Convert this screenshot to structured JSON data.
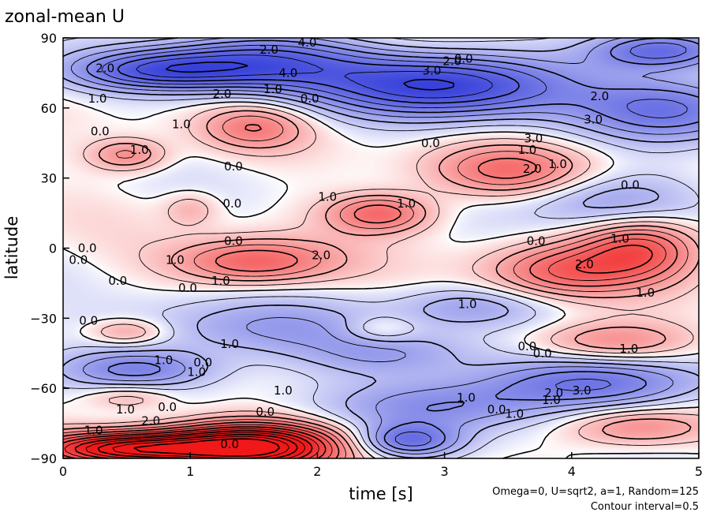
{
  "chart_data": {
    "type": "heatmap",
    "title": "zonal-mean U",
    "xlabel": "time [s]",
    "ylabel": "latitude",
    "xlim": [
      0,
      5
    ],
    "ylim": [
      -90,
      90
    ],
    "x_ticks": [
      "0",
      "1",
      "2",
      "3",
      "4",
      "5"
    ],
    "y_ticks": [
      "-90",
      "-60",
      "-30",
      "0",
      "30",
      "60",
      "90"
    ],
    "x_tick_values": [
      0,
      1,
      2,
      3,
      4,
      5
    ],
    "y_tick_values": [
      -90,
      -60,
      -30,
      0,
      30,
      60,
      90
    ],
    "contour_interval": 0.5,
    "colormap": {
      "negative": "#2a34d8",
      "zero": "#ffffff",
      "positive": "#f01818"
    },
    "footnote_lines": [
      "Omega=0, U=sqrt2, a=1, Random=125",
      "Contour interval=0.5"
    ],
    "features": [
      {
        "t": 0.5,
        "lat": 40,
        "amp": 1.8,
        "st": 0.22,
        "sl": 5
      },
      {
        "t": 1.5,
        "lat": 52,
        "amp": 1.8,
        "st": 0.3,
        "sl": 7
      },
      {
        "t": 1.0,
        "lat": 17,
        "amp": 1.0,
        "st": 0.15,
        "sl": 5
      },
      {
        "t": 3.5,
        "lat": 33,
        "amp": 2.2,
        "st": 0.45,
        "sl": 8
      },
      {
        "t": 2.5,
        "lat": 15,
        "amp": 2.5,
        "st": 0.3,
        "sl": 6
      },
      {
        "t": 1.5,
        "lat": -6,
        "amp": 2.6,
        "st": 0.45,
        "sl": 7
      },
      {
        "t": 4.55,
        "lat": 0,
        "amp": 3.0,
        "st": 0.35,
        "sl": 10
      },
      {
        "t": 3.9,
        "lat": -10,
        "amp": 2.2,
        "st": 0.4,
        "sl": 8
      },
      {
        "t": 4.3,
        "lat": -40,
        "amp": 1.8,
        "st": 0.45,
        "sl": 6
      },
      {
        "t": 0.5,
        "lat": -36,
        "amp": 1.5,
        "st": 0.22,
        "sl": 4
      },
      {
        "t": 2.5,
        "lat": -35,
        "amp": 1.0,
        "st": 0.2,
        "sl": 4
      },
      {
        "t": 0.5,
        "lat": -64,
        "amp": 1.2,
        "st": 0.25,
        "sl": 4
      },
      {
        "t": 1.5,
        "lat": -85,
        "amp": 6.0,
        "st": 0.5,
        "sl": 7
      },
      {
        "t": 0.5,
        "lat": -86,
        "amp": 5.0,
        "st": 0.5,
        "sl": 5
      },
      {
        "t": 4.5,
        "lat": -77,
        "amp": 1.8,
        "st": 0.4,
        "sl": 6
      },
      {
        "t": 1.5,
        "lat": 80,
        "amp": -3.0,
        "st": 0.6,
        "sl": 9
      },
      {
        "t": 3.0,
        "lat": 70,
        "amp": -4.0,
        "st": 0.7,
        "sl": 10
      },
      {
        "t": 4.7,
        "lat": 85,
        "amp": -3.0,
        "st": 0.4,
        "sl": 6
      },
      {
        "t": 4.8,
        "lat": 60,
        "amp": -2.5,
        "st": 0.5,
        "sl": 10
      },
      {
        "t": 0.7,
        "lat": 76,
        "amp": -2.5,
        "st": 0.5,
        "sl": 6
      },
      {
        "t": 4.3,
        "lat": 20,
        "amp": -1.6,
        "st": 0.5,
        "sl": 9
      },
      {
        "t": 1.5,
        "lat": -35,
        "amp": -1.5,
        "st": 0.8,
        "sl": 9
      },
      {
        "t": 4.2,
        "lat": -58,
        "amp": -2.5,
        "st": 0.7,
        "sl": 8
      },
      {
        "t": 3.0,
        "lat": -68,
        "amp": -1.8,
        "st": 0.6,
        "sl": 8
      },
      {
        "t": 0.6,
        "lat": -52,
        "amp": -2.0,
        "st": 0.45,
        "sl": 6
      },
      {
        "t": 2.7,
        "lat": -83,
        "amp": -2.5,
        "st": 0.3,
        "sl": 5
      },
      {
        "t": 2.6,
        "lat": -46,
        "amp": -1.4,
        "st": 0.5,
        "sl": 7
      },
      {
        "t": 3.2,
        "lat": -25,
        "amp": -1.2,
        "st": 0.4,
        "sl": 6
      }
    ],
    "contour_labels": [
      {
        "text": "2.0",
        "t": 1.62,
        "lat": 85
      },
      {
        "text": "4.0",
        "t": 1.92,
        "lat": 88
      },
      {
        "text": "2.0",
        "t": 0.33,
        "lat": 77
      },
      {
        "text": "4.0",
        "t": 1.77,
        "lat": 75
      },
      {
        "text": "2.0",
        "t": 1.25,
        "lat": 66
      },
      {
        "text": "1.0",
        "t": 1.65,
        "lat": 68
      },
      {
        "text": "0.0",
        "t": 1.94,
        "lat": 64
      },
      {
        "text": "0.0",
        "t": 0.29,
        "lat": 50
      },
      {
        "text": "1.0",
        "t": 0.27,
        "lat": 64
      },
      {
        "text": "1.0",
        "t": 0.93,
        "lat": 53
      },
      {
        "text": "1.0",
        "t": 0.6,
        "lat": 42
      },
      {
        "text": "0.0",
        "t": 1.34,
        "lat": 35
      },
      {
        "text": "0.0",
        "t": 1.33,
        "lat": 19
      },
      {
        "text": "1.0",
        "t": 2.08,
        "lat": 22
      },
      {
        "text": "1.0",
        "t": 2.7,
        "lat": 19
      },
      {
        "text": "0.0",
        "t": 1.34,
        "lat": 3
      },
      {
        "text": "0.0",
        "t": 0.19,
        "lat": 0
      },
      {
        "text": "0.0",
        "t": 0.12,
        "lat": -5
      },
      {
        "text": "1.0",
        "t": 0.88,
        "lat": -5
      },
      {
        "text": "2.0",
        "t": 2.03,
        "lat": -3
      },
      {
        "text": "1.0",
        "t": 1.24,
        "lat": -14
      },
      {
        "text": "0.0",
        "t": 0.43,
        "lat": -14
      },
      {
        "text": "0.0",
        "t": 0.98,
        "lat": -17
      },
      {
        "text": "0.0",
        "t": 3.72,
        "lat": 3
      },
      {
        "text": "1.0",
        "t": 4.38,
        "lat": 4
      },
      {
        "text": "2.0",
        "t": 4.1,
        "lat": -7
      },
      {
        "text": "1.0",
        "t": 4.58,
        "lat": -19
      },
      {
        "text": "3.0",
        "t": 2.9,
        "lat": 76
      },
      {
        "text": "2.0",
        "t": 3.06,
        "lat": 80
      },
      {
        "text": "0.0",
        "t": 3.15,
        "lat": 81
      },
      {
        "text": "2.0",
        "t": 4.22,
        "lat": 65
      },
      {
        "text": "3.0",
        "t": 4.17,
        "lat": 55
      },
      {
        "text": "3.0",
        "t": 3.7,
        "lat": 47
      },
      {
        "text": "1.0",
        "t": 3.65,
        "lat": 42
      },
      {
        "text": "0.0",
        "t": 2.89,
        "lat": 45
      },
      {
        "text": "2.0",
        "t": 3.69,
        "lat": 34
      },
      {
        "text": "1.0",
        "t": 3.89,
        "lat": 36
      },
      {
        "text": "0.0",
        "t": 4.46,
        "lat": 27
      },
      {
        "text": "1.0",
        "t": 3.18,
        "lat": -24
      },
      {
        "text": "0.0",
        "t": 0.2,
        "lat": -31
      },
      {
        "text": "1.0",
        "t": 1.31,
        "lat": -41
      },
      {
        "text": "0.0",
        "t": 3.65,
        "lat": -42
      },
      {
        "text": "0.0",
        "t": 3.77,
        "lat": -45
      },
      {
        "text": "1.0",
        "t": 4.45,
        "lat": -43
      },
      {
        "text": "1.0",
        "t": 0.79,
        "lat": -48
      },
      {
        "text": "0.0",
        "t": 1.1,
        "lat": -49
      },
      {
        "text": "1.0",
        "t": 1.05,
        "lat": -53
      },
      {
        "text": "1.0",
        "t": 1.73,
        "lat": -61
      },
      {
        "text": "3.0",
        "t": 4.08,
        "lat": -61
      },
      {
        "text": "2.0",
        "t": 3.86,
        "lat": -62
      },
      {
        "text": "1.0",
        "t": 3.84,
        "lat": -65
      },
      {
        "text": "1.0",
        "t": 3.17,
        "lat": -64
      },
      {
        "text": "0.0",
        "t": 3.41,
        "lat": -69
      },
      {
        "text": "1.0",
        "t": 3.55,
        "lat": -71
      },
      {
        "text": "1.0",
        "t": 0.49,
        "lat": -69
      },
      {
        "text": "0.0",
        "t": 0.82,
        "lat": -68
      },
      {
        "text": "0.0",
        "t": 1.59,
        "lat": -70
      },
      {
        "text": "2.0",
        "t": 0.69,
        "lat": -74
      },
      {
        "text": "1.0",
        "t": 0.24,
        "lat": -78
      },
      {
        "text": "0.0",
        "t": 1.31,
        "lat": -84
      }
    ]
  }
}
